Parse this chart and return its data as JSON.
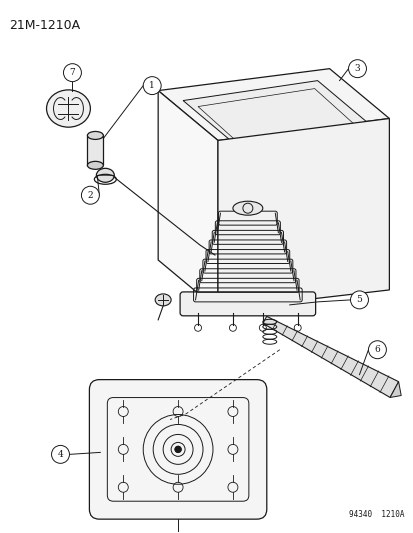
{
  "title": "21M-1210A",
  "footer": "94340  1210A",
  "bg_color": "#ffffff",
  "line_color": "#1a1a1a",
  "fig_w": 4.14,
  "fig_h": 5.33,
  "dpi": 100
}
